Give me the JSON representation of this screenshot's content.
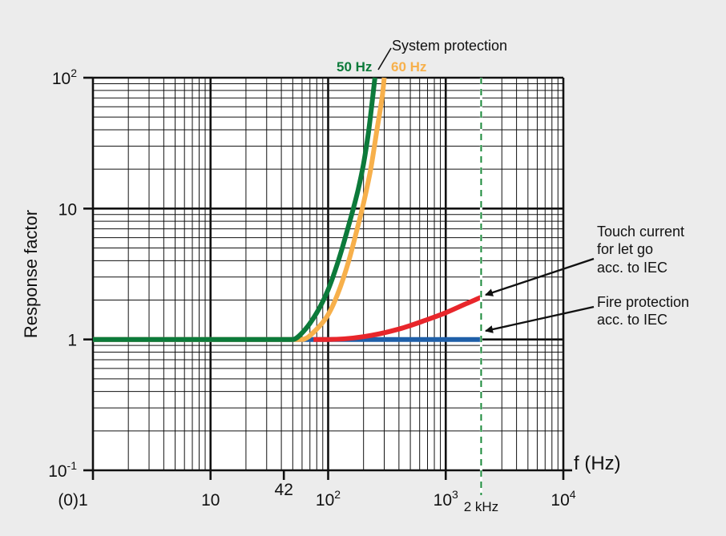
{
  "chart_data": {
    "type": "line",
    "title": "",
    "xlabel": "f (Hz)",
    "ylabel": "Response factor",
    "x_scale": "log",
    "y_scale": "log",
    "xlim": [
      1,
      10000
    ],
    "ylim": [
      0.1,
      100
    ],
    "grid": true,
    "x_ticks": [
      {
        "value": 1,
        "label": "(0)1"
      },
      {
        "value": 10,
        "label": "10"
      },
      {
        "value": 42,
        "label": "42"
      },
      {
        "value": 100,
        "label": "10",
        "sup": "2"
      },
      {
        "value": 1000,
        "label": "10",
        "sup": "3"
      },
      {
        "value": 10000,
        "label": "10",
        "sup": "4"
      }
    ],
    "y_ticks": [
      {
        "value": 0.1,
        "label": "10",
        "sup": "-1"
      },
      {
        "value": 1,
        "label": "1"
      },
      {
        "value": 10,
        "label": "10"
      },
      {
        "value": 100,
        "label": "10",
        "sup": "2"
      }
    ],
    "series": [
      {
        "name": "Fire protection acc. to IEC",
        "color": "#1f5fa8",
        "x": [
          1,
          2000
        ],
        "y": [
          1,
          1
        ]
      },
      {
        "name": "Touch current for let go acc. to IEC",
        "color": "#e8262b",
        "x": [
          75,
          100,
          200,
          400,
          700,
          1000,
          1500,
          2000
        ],
        "y": [
          1,
          1,
          1.05,
          1.2,
          1.42,
          1.6,
          1.88,
          2.1
        ]
      },
      {
        "name": "60 Hz",
        "color": "#f7b04b",
        "x": [
          1,
          60,
          80,
          100,
          120,
          150,
          180,
          200,
          230,
          260,
          290,
          300
        ],
        "y": [
          1,
          1,
          1.2,
          1.55,
          2.2,
          4,
          7.5,
          11,
          20,
          40,
          75,
          100
        ]
      },
      {
        "name": "50 Hz",
        "color": "#0c7a3a",
        "x": [
          1,
          50,
          60,
          80,
          100,
          120,
          150,
          180,
          200,
          220,
          250
        ],
        "y": [
          1,
          1,
          1.12,
          1.6,
          2.4,
          3.8,
          7.5,
          14,
          22,
          38,
          100
        ]
      }
    ],
    "markers": [
      {
        "label": "2 kHz",
        "x": 2000
      }
    ],
    "annotations": {
      "system_protection": "System protection",
      "touch_current": [
        "Touch current",
        "for let go",
        "acc. to IEC"
      ],
      "fire_protection": [
        "Fire protection",
        "acc. to IEC"
      ]
    }
  }
}
